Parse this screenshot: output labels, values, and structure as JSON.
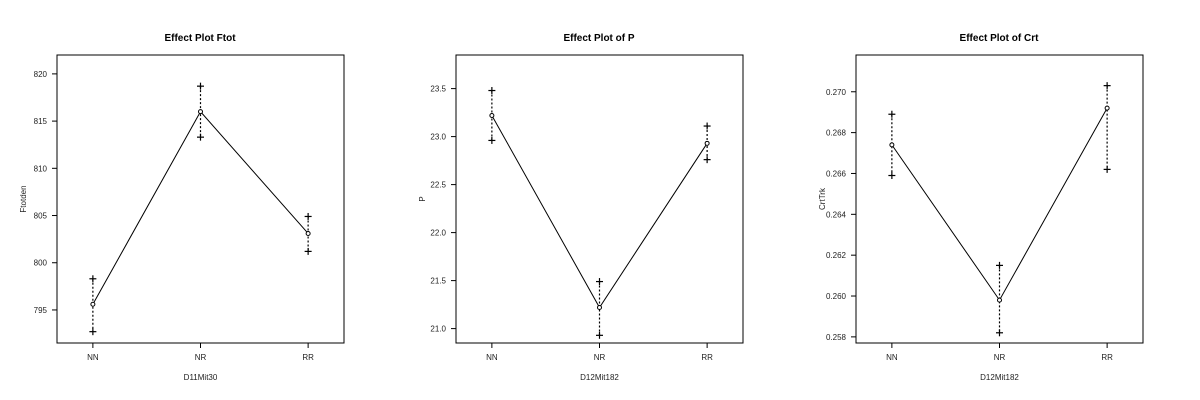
{
  "chart_data": [
    {
      "type": "line",
      "title": "Effect Plot Ftot",
      "xlabel": "D11Mit30",
      "ylabel": "Ftotden",
      "categories": [
        "NN",
        "NR",
        "RR"
      ],
      "ylim": [
        791.5,
        822
      ],
      "yticks": [
        795,
        800,
        805,
        810,
        815,
        820
      ],
      "yticklabels": [
        "795",
        "800",
        "805",
        "810",
        "815",
        "820"
      ],
      "series": [
        {
          "values": [
            795.6,
            816.0,
            803.1
          ],
          "lower": [
            792.7,
            813.3,
            801.2
          ],
          "upper": [
            798.3,
            818.7,
            804.9
          ]
        }
      ]
    },
    {
      "type": "line",
      "title": "Effect Plot of P",
      "xlabel": "D12Mit182",
      "ylabel": "P",
      "categories": [
        "NN",
        "NR",
        "RR"
      ],
      "ylim": [
        20.85,
        23.85
      ],
      "yticks": [
        21.0,
        21.5,
        22.0,
        22.5,
        23.0,
        23.5
      ],
      "yticklabels": [
        "21.0",
        "21.5",
        "22.0",
        "22.5",
        "23.0",
        "23.5"
      ],
      "series": [
        {
          "values": [
            23.22,
            21.22,
            22.93
          ],
          "lower": [
            22.96,
            20.93,
            22.76
          ],
          "upper": [
            23.48,
            21.49,
            23.11
          ]
        }
      ]
    },
    {
      "type": "line",
      "title": "Effect Plot of Crt",
      "xlabel": "D12Mit182",
      "ylabel": "CrtTrk",
      "categories": [
        "NN",
        "NR",
        "RR"
      ],
      "ylim": [
        0.2577,
        0.2718
      ],
      "yticks": [
        0.258,
        0.26,
        0.262,
        0.264,
        0.266,
        0.268,
        0.27
      ],
      "yticklabels": [
        "0.258",
        "0.260",
        "0.262",
        "0.264",
        "0.266",
        "0.268",
        "0.270"
      ],
      "series": [
        {
          "values": [
            0.2674,
            0.2598,
            0.2692
          ],
          "lower": [
            0.2659,
            0.2582,
            0.2662
          ],
          "upper": [
            0.2689,
            0.2615,
            0.2703
          ]
        }
      ]
    }
  ]
}
